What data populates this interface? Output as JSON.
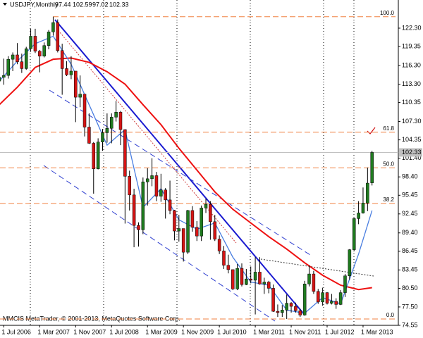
{
  "chart_data": {
    "type": "candlestick",
    "symbol": "USDJPY,Monthly",
    "footer": "MMCIS MetaTrader, © 2001-2013, MetaQuotes Software Corp.",
    "categories": [
      null,
      "1 Jul 2006",
      null,
      null,
      null,
      null,
      null,
      null,
      null,
      "1 Mar 2007",
      null,
      null,
      null,
      null,
      null,
      null,
      null,
      "1 Nov 2007",
      null,
      null,
      null,
      null,
      null,
      null,
      null,
      "1 Jul 2008",
      null,
      null,
      null,
      null,
      null,
      null,
      null,
      "1 Mar 2009",
      null,
      null,
      null,
      null,
      null,
      null,
      null,
      "1 Nov 2009",
      null,
      null,
      null,
      null,
      null,
      null,
      null,
      "1 Jul 2010",
      null,
      null,
      null,
      null,
      null,
      null,
      null,
      "1 Mar 2011",
      null,
      null,
      null,
      null,
      null,
      null,
      null,
      "1 Nov 2011",
      null,
      null,
      null,
      null,
      null,
      null,
      null,
      "1 Jul 2012",
      null,
      null,
      null,
      null,
      null,
      null,
      null,
      "1 Mar 2013",
      null,
      null
    ],
    "open": [
      113.8,
      114.4,
      114.7,
      117.3,
      118.0,
      116.9,
      115.8,
      119.0,
      121.0,
      118.6,
      117.8,
      119.5,
      121.7,
      123.2,
      118.7,
      115.8,
      114.8,
      115.4,
      111.2,
      111.7,
      106.4,
      103.8,
      99.7,
      104.0,
      105.5,
      106.2,
      108.0,
      108.8,
      106.0,
      98.5,
      95.5,
      90.6,
      89.9,
      97.6,
      98.1,
      98.6,
      95.3,
      96.3,
      94.7,
      93.0,
      89.7,
      90.1,
      86.3,
      93.0,
      90.3,
      88.9,
      93.4,
      94.0,
      91.2,
      88.4,
      86.5,
      84.2,
      83.5,
      80.4,
      83.7,
      81.1,
      82.0,
      81.8,
      83.1,
      81.2,
      81.5,
      80.5,
      76.8,
      76.6,
      77.0,
      78.1,
      77.6,
      76.9,
      76.2,
      81.2,
      82.8,
      80.0,
      78.3,
      79.8,
      78.1,
      78.4,
      77.9,
      79.8,
      82.5,
      86.7,
      91.7,
      92.6,
      94.2,
      97.44
    ],
    "high": [
      115.6,
      117.4,
      117.8,
      118.4,
      119.9,
      118.2,
      119.3,
      122.2,
      122.2,
      118.8,
      120.0,
      122.0,
      124.14,
      123.7,
      119.8,
      117.0,
      117.8,
      115.4,
      114.7,
      111.7,
      108.6,
      104.0,
      104.6,
      106.1,
      108.6,
      108.6,
      110.6,
      109.0,
      106.0,
      99.4,
      96.5,
      91.1,
      98.3,
      99.8,
      101.4,
      99.2,
      98.9,
      96.6,
      97.8,
      93.1,
      92.3,
      90.1,
      93.1,
      93.7,
      91.3,
      93.8,
      94.9,
      94.5,
      92.3,
      89.0,
      87.3,
      85.9,
      83.5,
      84.4,
      84.5,
      83.6,
      84.0,
      85.5,
      85.5,
      82.2,
      81.7,
      81.1,
      77.9,
      77.8,
      79.5,
      78.3,
      78.2,
      77.2,
      81.7,
      84.2,
      83.3,
      80.4,
      80.6,
      79.9,
      79.6,
      78.9,
      80.2,
      82.8,
      86.8,
      91.8,
      94.5,
      96.7,
      99.9,
      102.59
    ],
    "low": [
      112.5,
      113.2,
      114.2,
      115.4,
      116.5,
      115.1,
      115.6,
      118.5,
      118.3,
      115.2,
      117.6,
      118.9,
      121.1,
      118.4,
      111.6,
      114.6,
      114.1,
      107.2,
      109.6,
      104.9,
      103.7,
      95.7,
      99.6,
      102.6,
      103.9,
      103.8,
      107.3,
      103.5,
      90.9,
      93.0,
      87.1,
      87.2,
      89.2,
      93.8,
      96.9,
      94.5,
      94.4,
      91.7,
      92.4,
      88.2,
      88.0,
      84.8,
      86.0,
      89.6,
      88.1,
      88.1,
      92.6,
      88.3,
      88.1,
      86.0,
      83.6,
      82.9,
      80.2,
      80.2,
      80.8,
      81.0,
      81.3,
      76.3,
      81.1,
      79.6,
      79.7,
      76.7,
      75.9,
      75.9,
      75.57,
      76.6,
      76.6,
      75.9,
      76.1,
      80.8,
      79.6,
      78.0,
      77.7,
      77.9,
      77.9,
      77.2,
      77.8,
      79.1,
      81.9,
      86.5,
      90.8,
      92.5,
      92.9,
      97.02
    ],
    "close": [
      114.4,
      114.7,
      117.3,
      118.0,
      116.9,
      115.8,
      119.0,
      121.0,
      118.6,
      117.8,
      119.5,
      121.7,
      123.2,
      118.7,
      115.8,
      114.8,
      115.4,
      111.2,
      111.7,
      106.4,
      103.8,
      99.7,
      104.0,
      105.5,
      106.2,
      108.0,
      108.8,
      106.0,
      98.5,
      95.5,
      90.6,
      89.9,
      97.6,
      98.1,
      98.6,
      95.3,
      96.3,
      94.7,
      93.0,
      89.7,
      90.1,
      86.3,
      93.0,
      90.3,
      88.9,
      93.4,
      94.0,
      91.2,
      88.4,
      86.5,
      84.2,
      83.5,
      80.4,
      83.7,
      81.1,
      82.0,
      81.8,
      83.1,
      81.2,
      81.5,
      80.5,
      76.8,
      76.6,
      77.0,
      78.1,
      77.6,
      76.9,
      76.2,
      81.2,
      82.8,
      80.0,
      78.3,
      79.8,
      78.1,
      78.4,
      77.9,
      79.8,
      82.5,
      86.7,
      91.7,
      92.6,
      94.2,
      97.4,
      102.33
    ],
    "up_color": "#1f7a1f",
    "down_color": "#d41414",
    "indicators": [
      {
        "color": "#ee1111",
        "index": [
          0,
          4,
          8,
          12,
          16,
          20,
          24,
          28,
          32,
          36,
          40,
          44,
          48,
          52,
          56,
          60,
          64,
          68,
          72,
          76,
          80,
          83
        ],
        "values": [
          110.0,
          112.8,
          116.0,
          117.3,
          117.5,
          116.8,
          115.3,
          113.3,
          110.0,
          106.8,
          103.0,
          99.5,
          96.0,
          93.2,
          91.0,
          88.8,
          86.8,
          84.6,
          82.6,
          81.0,
          80.3,
          80.6
        ]
      },
      {
        "color": "#4a7ee0",
        "index": [
          0,
          4,
          8,
          12,
          16,
          20,
          24,
          28,
          32,
          36,
          40,
          44,
          48,
          52,
          56,
          60,
          64,
          68,
          72,
          76,
          80,
          83
        ],
        "values": [
          113.8,
          117.0,
          119.8,
          121.0,
          116.5,
          110.0,
          103.5,
          106.0,
          93.5,
          96.5,
          91.5,
          90.0,
          91.0,
          85.5,
          81.5,
          81.0,
          77.0,
          76.5,
          79.0,
          78.0,
          86.0,
          93.0
        ]
      }
    ],
    "fib": {
      "high": 124.14,
      "low": 75.57,
      "color": "#f08040",
      "levels": [
        {
          "value": 100,
          "label": "100.0"
        },
        61.8,
        {
          "value": 50,
          "label": "50.0"
        },
        38.2,
        {
          "value": 0,
          "label": "0.0"
        }
      ]
    },
    "ylim": [
      74.55,
      126.37
    ],
    "yticks": [
      {
        "value": 122.3,
        "label": "122.30"
      },
      119.35,
      {
        "value": 116.3,
        "label": "116.30"
      },
      {
        "value": 113.3,
        "label": "113.30"
      },
      110.35,
      {
        "value": 107.3,
        "label": "107.30"
      },
      104.35,
      {
        "value": 101.4,
        "label": "101.40"
      },
      {
        "value": 98.4,
        "label": "98.40"
      },
      95.45,
      92.45,
      {
        "value": 89.4,
        "label": "89.40"
      },
      86.45,
      83.45,
      {
        "value": 80.5,
        "label": "80.50"
      },
      {
        "value": 77.5,
        "label": "77.50"
      },
      74.55
    ]
  }
}
